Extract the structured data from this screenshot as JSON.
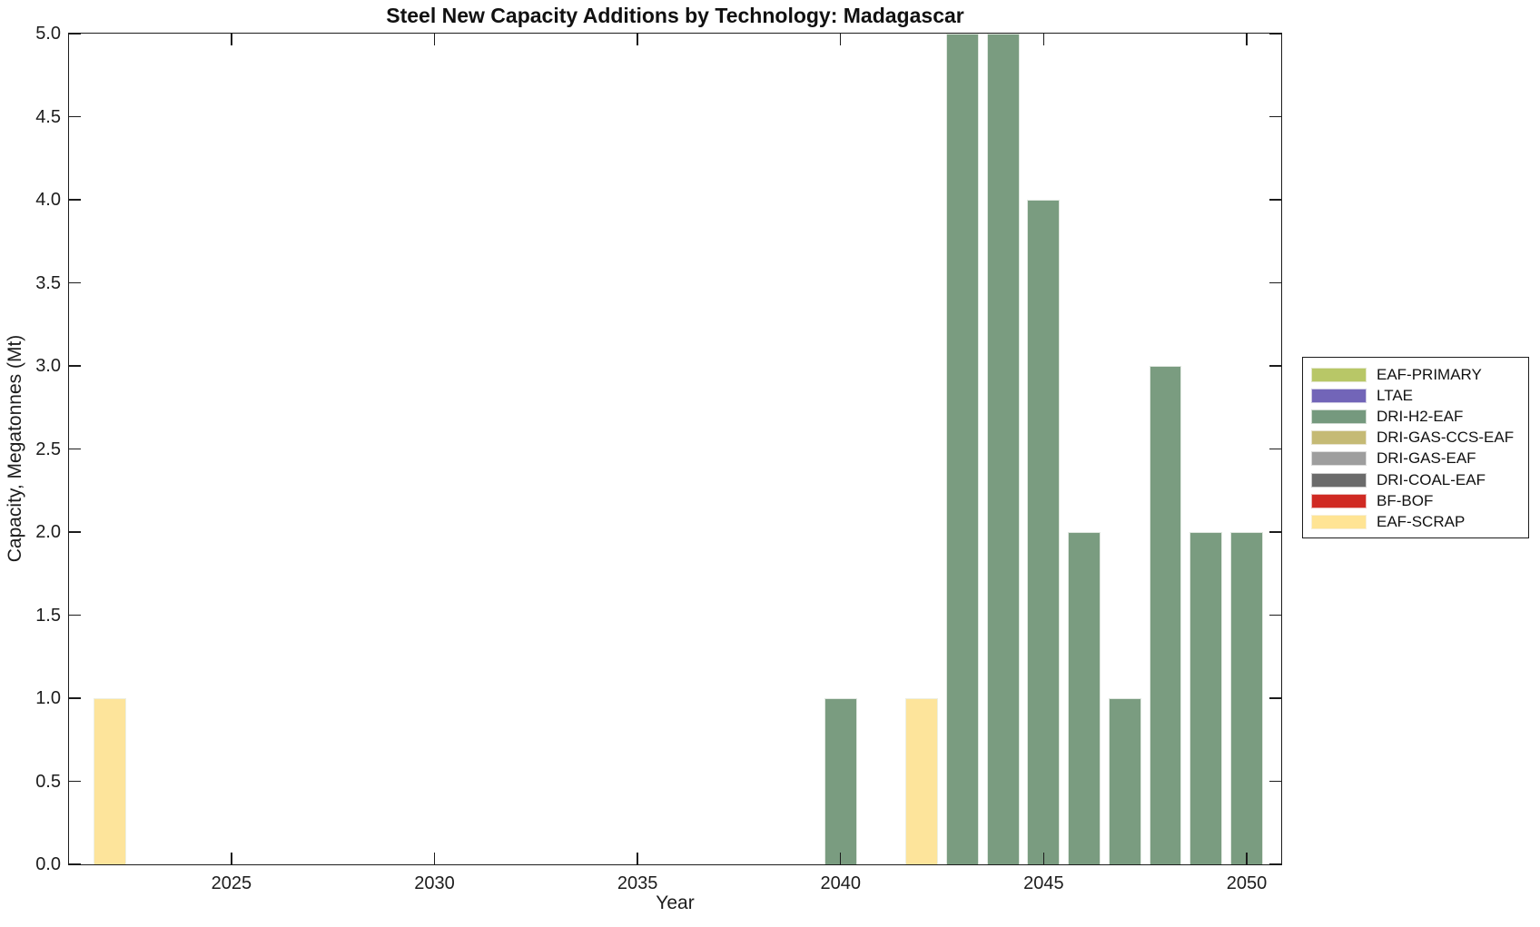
{
  "chart_data": {
    "type": "bar",
    "title": "Steel New Capacity Additions by Technology: Madagascar",
    "xlabel": "Year",
    "ylabel": "Capacity, Megatonnes (Mt)",
    "xlim": [
      2021.0,
      2050.85
    ],
    "ylim": [
      0,
      5
    ],
    "x_ticks": [
      2025,
      2030,
      2035,
      2040,
      2045,
      2050
    ],
    "x_tick_labels": [
      "2025",
      "2030",
      "2035",
      "2040",
      "2045",
      "2050"
    ],
    "y_ticks": [
      0,
      0.5,
      1,
      1.5,
      2,
      2.5,
      3,
      3.5,
      4,
      4.5,
      5
    ],
    "y_tick_labels": [
      "0.0",
      "0.5",
      "1.0",
      "1.5",
      "2.0",
      "2.5",
      "3.0",
      "3.5",
      "4.0",
      "4.5",
      "5.0"
    ],
    "grid": false,
    "bar_width_years": 0.8,
    "legend_position": "right-outside",
    "bars": [
      {
        "year": 2022,
        "technology": "EAF-SCRAP",
        "value": 1
      },
      {
        "year": 2040,
        "technology": "DRI-H2-EAF",
        "value": 1
      },
      {
        "year": 2042,
        "technology": "EAF-SCRAP",
        "value": 1
      },
      {
        "year": 2043,
        "technology": "DRI-H2-EAF",
        "value": 5
      },
      {
        "year": 2044,
        "technology": "DRI-H2-EAF",
        "value": 5
      },
      {
        "year": 2045,
        "technology": "DRI-H2-EAF",
        "value": 4
      },
      {
        "year": 2046,
        "technology": "DRI-H2-EAF",
        "value": 2
      },
      {
        "year": 2047,
        "technology": "DRI-H2-EAF",
        "value": 1
      },
      {
        "year": 2048,
        "technology": "DRI-H2-EAF",
        "value": 3
      },
      {
        "year": 2049,
        "technology": "DRI-H2-EAF",
        "value": 2
      },
      {
        "year": 2050,
        "technology": "DRI-H2-EAF",
        "value": 2
      }
    ],
    "legend": [
      {
        "label": "EAF-PRIMARY",
        "color": "#B8C767"
      },
      {
        "label": "LTAE",
        "color": "#7265B8"
      },
      {
        "label": "DRI-H2-EAF",
        "color": "#75997E"
      },
      {
        "label": "DRI-GAS-CCS-EAF",
        "color": "#C5BA75"
      },
      {
        "label": "DRI-GAS-EAF",
        "color": "#9E9E9E"
      },
      {
        "label": "DRI-COAL-EAF",
        "color": "#6B6B6B"
      },
      {
        "label": "BF-BOF",
        "color": "#D02A23"
      },
      {
        "label": "EAF-SCRAP",
        "color": "#FFE494"
      }
    ],
    "bar_colors": {
      "DRI-H2-EAF": "#7A9C80",
      "EAF-SCRAP": "#FDE49B"
    },
    "axis_color": "#1c1c1c",
    "background_color": "#ffffff"
  }
}
